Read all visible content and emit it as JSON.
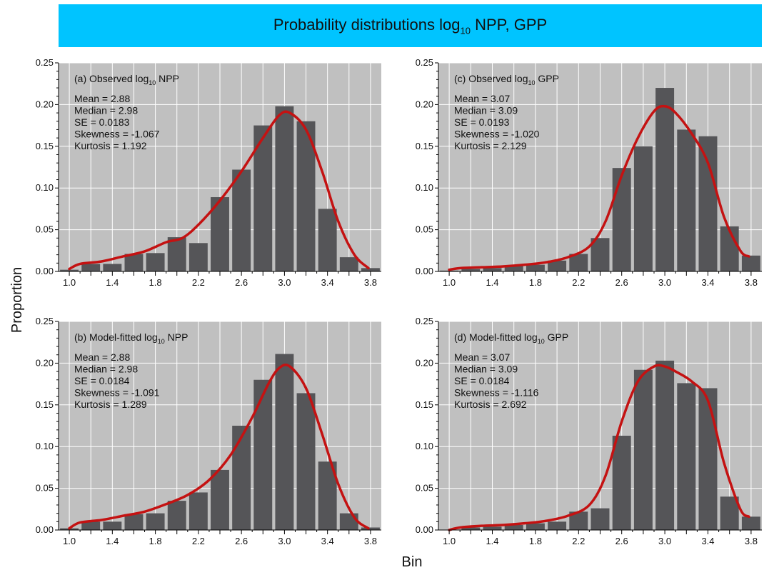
{
  "figure": {
    "title_pre": "Probability distributions log",
    "title_sub": "10",
    "title_post": " NPP, GPP",
    "ylabel": "Proportion",
    "xlabel": "Bin",
    "colors": {
      "banner": "#00c4ff",
      "panel_bg": "#c0c0c0",
      "bar": "#555558",
      "curve": "#c41212",
      "grid": "#ffffff"
    }
  },
  "chart_data": [
    {
      "type": "bar",
      "title_pre": "(a) Observed log",
      "title_sub": "10",
      "title_post": " NPP",
      "x": [
        1.0,
        1.2,
        1.4,
        1.6,
        1.8,
        2.0,
        2.2,
        2.4,
        2.6,
        2.8,
        3.0,
        3.2,
        3.4,
        3.6,
        3.8
      ],
      "values": [
        0.002,
        0.009,
        0.009,
        0.021,
        0.022,
        0.041,
        0.034,
        0.089,
        0.122,
        0.175,
        0.198,
        0.18,
        0.075,
        0.017,
        0.004
      ],
      "curve": {
        "x": [
          1.0,
          1.1,
          1.3,
          1.5,
          1.7,
          1.9,
          2.05,
          2.2,
          2.4,
          2.6,
          2.8,
          2.95,
          3.05,
          3.2,
          3.35,
          3.5,
          3.65,
          3.78
        ],
        "y": [
          0.003,
          0.009,
          0.012,
          0.018,
          0.024,
          0.035,
          0.04,
          0.056,
          0.085,
          0.12,
          0.16,
          0.187,
          0.19,
          0.17,
          0.12,
          0.06,
          0.02,
          0.004
        ]
      },
      "stats": [
        "Mean = 2.88",
        "Median = 2.98",
        "SE = 0.0183",
        "Skewness = -1.067",
        "Kurtosis = 1.192"
      ],
      "yticks": [
        "0.00",
        "0.05",
        "0.10",
        "0.15",
        "0.20",
        "0.25"
      ],
      "xticks": [
        "1.0",
        "1.4",
        "1.8",
        "2.2",
        "2.6",
        "3.0",
        "3.4",
        "3.8"
      ],
      "ylim": [
        0,
        0.25
      ],
      "xlim": [
        0.9,
        3.9
      ],
      "grid": true
    },
    {
      "type": "bar",
      "title_pre": "(c) Observed log",
      "title_sub": "10",
      "title_post": " GPP",
      "x": [
        1.0,
        1.2,
        1.4,
        1.6,
        1.8,
        2.0,
        2.2,
        2.4,
        2.6,
        2.8,
        3.0,
        3.2,
        3.4,
        3.6,
        3.8
      ],
      "values": [
        0.001,
        0.003,
        0.004,
        0.007,
        0.008,
        0.013,
        0.021,
        0.04,
        0.124,
        0.15,
        0.22,
        0.17,
        0.162,
        0.054,
        0.019
      ],
      "curve": {
        "x": [
          1.0,
          1.1,
          1.3,
          1.5,
          1.7,
          1.9,
          2.1,
          2.3,
          2.45,
          2.6,
          2.75,
          2.9,
          3.0,
          3.1,
          3.25,
          3.4,
          3.55,
          3.7,
          3.78
        ],
        "y": [
          0.002,
          0.004,
          0.005,
          0.006,
          0.008,
          0.011,
          0.017,
          0.03,
          0.06,
          0.115,
          0.16,
          0.192,
          0.198,
          0.19,
          0.165,
          0.13,
          0.065,
          0.025,
          0.018
        ]
      },
      "stats": [
        "Mean = 3.07",
        "Median = 3.09",
        "SE = 0.0193",
        "Skewness = -1.020",
        "Kurtosis = 2.129"
      ],
      "yticks": [
        "0.00",
        "0.05",
        "0.10",
        "0.15",
        "0.20",
        "0.25"
      ],
      "xticks": [
        "1.0",
        "1.4",
        "1.8",
        "2.2",
        "2.6",
        "3.0",
        "3.4",
        "3.8"
      ],
      "ylim": [
        0,
        0.25
      ],
      "xlim": [
        0.9,
        3.9
      ],
      "grid": true
    },
    {
      "type": "bar",
      "title_pre": "(b) Model-fitted log",
      "title_sub": "10",
      "title_post": " NPP",
      "x": [
        1.0,
        1.2,
        1.4,
        1.6,
        1.8,
        2.0,
        2.2,
        2.4,
        2.6,
        2.8,
        3.0,
        3.2,
        3.4,
        3.6,
        3.8
      ],
      "values": [
        0.002,
        0.01,
        0.01,
        0.019,
        0.02,
        0.035,
        0.045,
        0.072,
        0.125,
        0.18,
        0.211,
        0.164,
        0.082,
        0.02,
        0.003
      ],
      "curve": {
        "x": [
          1.0,
          1.1,
          1.3,
          1.5,
          1.7,
          1.9,
          2.1,
          2.3,
          2.5,
          2.7,
          2.85,
          2.95,
          3.05,
          3.2,
          3.35,
          3.5,
          3.65,
          3.78
        ],
        "y": [
          0.002,
          0.009,
          0.012,
          0.017,
          0.022,
          0.031,
          0.042,
          0.06,
          0.09,
          0.135,
          0.175,
          0.194,
          0.196,
          0.17,
          0.115,
          0.055,
          0.015,
          0.002
        ]
      },
      "stats": [
        "Mean = 2.88",
        "Median = 2.98",
        "SE = 0.0184",
        "Skewness = -1.091",
        "Kurtosis = 1.289"
      ],
      "yticks": [
        "0.00",
        "0.05",
        "0.10",
        "0.15",
        "0.20",
        "0.25"
      ],
      "xticks": [
        "1.0",
        "1.4",
        "1.8",
        "2.2",
        "2.6",
        "3.0",
        "3.4",
        "3.8"
      ],
      "ylim": [
        0,
        0.25
      ],
      "xlim": [
        0.9,
        3.9
      ],
      "grid": true
    },
    {
      "type": "bar",
      "title_pre": "(d) Model-fitted log",
      "title_sub": "10",
      "title_post": " GPP",
      "x": [
        1.0,
        1.2,
        1.4,
        1.6,
        1.8,
        2.0,
        2.2,
        2.4,
        2.6,
        2.8,
        3.0,
        3.2,
        3.4,
        3.6,
        3.8
      ],
      "values": [
        0.0,
        0.003,
        0.004,
        0.006,
        0.008,
        0.01,
        0.022,
        0.026,
        0.113,
        0.192,
        0.203,
        0.176,
        0.17,
        0.04,
        0.016
      ],
      "curve": {
        "x": [
          1.0,
          1.1,
          1.3,
          1.5,
          1.7,
          1.9,
          2.1,
          2.3,
          2.45,
          2.6,
          2.75,
          2.9,
          3.0,
          3.1,
          3.25,
          3.4,
          3.55,
          3.7,
          3.78
        ],
        "y": [
          0.0,
          0.003,
          0.005,
          0.006,
          0.008,
          0.011,
          0.017,
          0.03,
          0.065,
          0.13,
          0.178,
          0.196,
          0.196,
          0.19,
          0.178,
          0.155,
          0.08,
          0.025,
          0.016
        ]
      },
      "stats": [
        "Mean = 3.07",
        "Median = 3.09",
        "SE = 0.0184",
        "Skewness = -1.116",
        "Kurtosis = 2.692"
      ],
      "yticks": [
        "0.00",
        "0.05",
        "0.10",
        "0.15",
        "0.20",
        "0.25"
      ],
      "xticks": [
        "1.0",
        "1.4",
        "1.8",
        "2.2",
        "2.6",
        "3.0",
        "3.4",
        "3.8"
      ],
      "ylim": [
        0,
        0.25
      ],
      "xlim": [
        0.9,
        3.9
      ],
      "grid": true
    }
  ]
}
